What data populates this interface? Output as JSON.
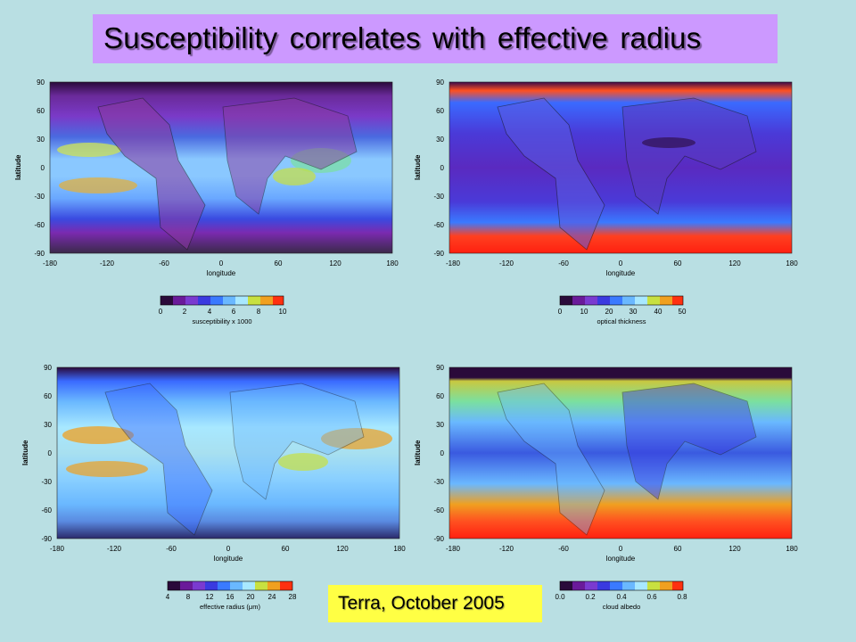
{
  "title": "Susceptibility correlates with effective radius",
  "caption": "Terra, October 2005",
  "axes": {
    "ylabel": "latitude",
    "xlabel": "longitude",
    "xticks": [
      "-180",
      "-120",
      "-60",
      "0",
      "60",
      "120",
      "180"
    ],
    "yticks": [
      "90",
      "60",
      "30",
      "0",
      "-30",
      "-60",
      "-90"
    ]
  },
  "panels": [
    {
      "id": "susceptibility",
      "colorbar_label": "susceptibility x 1000",
      "colorbar_ticks": [
        "0",
        "2",
        "4",
        "6",
        "8",
        "10"
      ]
    },
    {
      "id": "optical-thickness",
      "colorbar_label": "optical thickness",
      "colorbar_ticks": [
        "0",
        "10",
        "20",
        "30",
        "40",
        "50"
      ]
    },
    {
      "id": "effective-radius",
      "colorbar_label": "effective radius (μm)",
      "colorbar_ticks": [
        "4",
        "8",
        "12",
        "16",
        "20",
        "24",
        "28"
      ]
    },
    {
      "id": "cloud-albedo",
      "colorbar_label": "cloud albedo",
      "colorbar_ticks": [
        "0.0",
        "0.2",
        "0.4",
        "0.6",
        "0.8"
      ]
    }
  ],
  "colors": {
    "background": "#b9dfe3",
    "title_box": "#cc99ff",
    "caption_box": "#ffff44",
    "colorscale": [
      "#1a0533",
      "#5a1a8a",
      "#8a3ad0",
      "#3a3ae0",
      "#3a7aff",
      "#6ab8ff",
      "#a8e8ff",
      "#7ae0a0",
      "#c8e040",
      "#f0a020",
      "#ff3010"
    ]
  }
}
